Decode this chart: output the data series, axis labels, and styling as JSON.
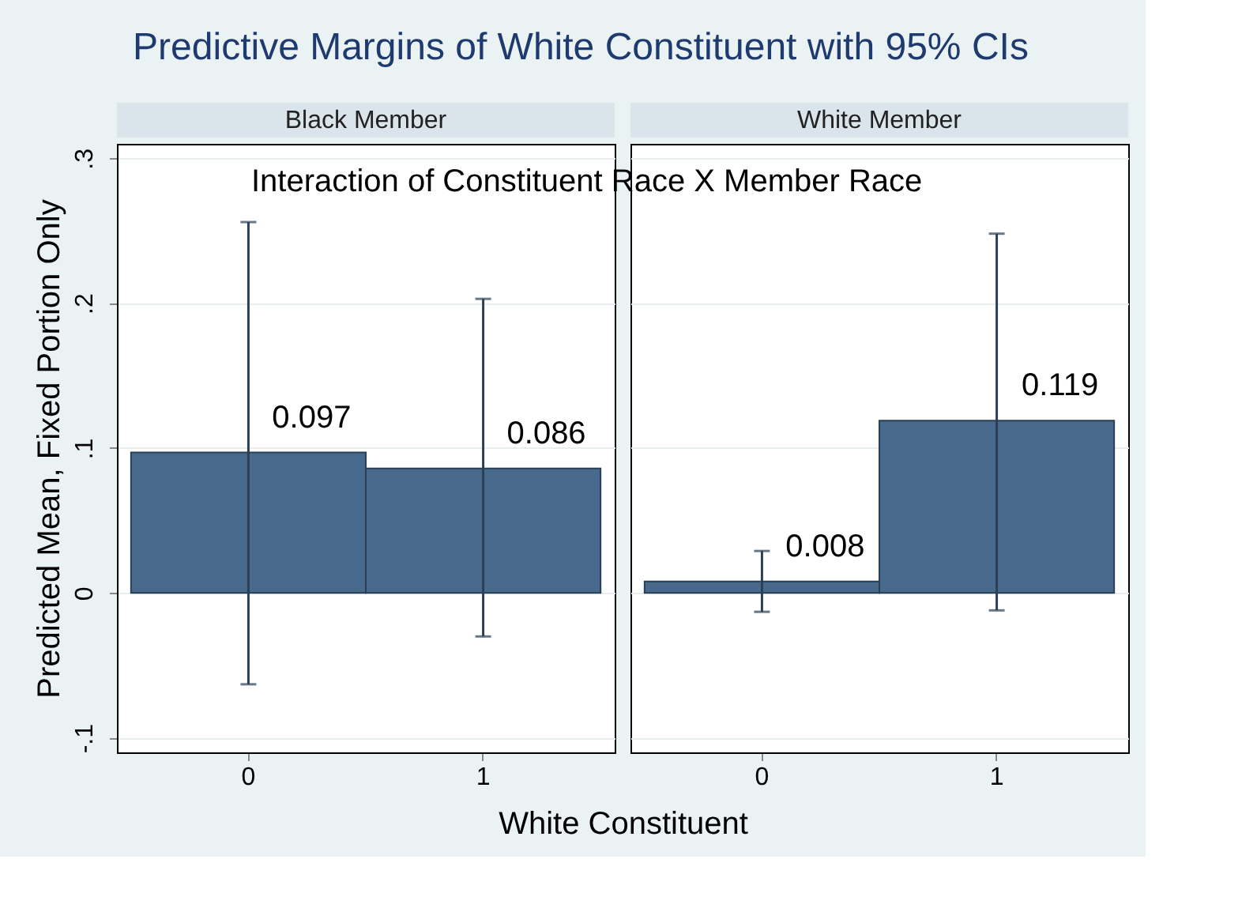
{
  "chart_data": [
    {
      "type": "bar",
      "title": "Predictive Margins of White Constituent with 95% CIs",
      "subtitle": "Black Member",
      "annotations": [
        "Interaction of Constituent Race X Member Race"
      ],
      "xlabel": "White Constituent",
      "ylabel": "Predicted Mean, Fixed Portion Only",
      "categories": [
        "0",
        "1"
      ],
      "values": [
        0.097,
        0.086
      ],
      "color": "#476a8c",
      "errors": [
        [
          -0.063,
          0.256
        ],
        [
          -0.03,
          0.203
        ]
      ],
      "data_labels": true,
      "ylim": [
        -0.11,
        0.31
      ],
      "yticks": [
        {
          "value": -0.1,
          "label": "-.1"
        },
        0,
        {
          "value": 0.1,
          "label": ".1"
        },
        {
          "value": 0.2,
          "label": ".2"
        },
        {
          "value": 0.3,
          "label": ".3"
        }
      ],
      "grid": "y"
    },
    {
      "type": "bar",
      "subtitle": "White Member",
      "categories": [
        "0",
        "1"
      ],
      "values": [
        0.008,
        0.119
      ],
      "color": "#476a8c",
      "errors": [
        [
          -0.013,
          0.029
        ],
        [
          -0.012,
          0.248
        ]
      ],
      "data_labels": true,
      "ylim": [
        -0.11,
        0.31
      ],
      "yticks": [
        -0.1,
        0,
        0.1,
        0.2,
        0.3
      ],
      "grid": "y",
      "tick_labels": "x"
    }
  ]
}
